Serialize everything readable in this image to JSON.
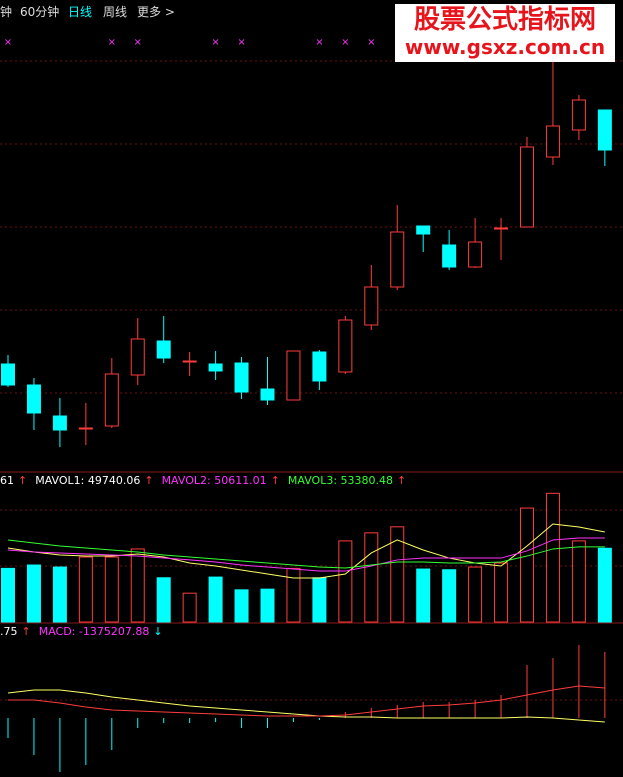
{
  "toolbar": [
    "钟",
    "60分钟",
    "日线",
    "周线",
    "更多 >"
  ],
  "watermark": {
    "title": "股票公式指标网",
    "url": "www.gsxz.com.cn"
  },
  "chart_data": [
    {
      "type": "candlestick",
      "open": [
        136,
        115,
        84,
        72,
        74,
        125,
        159,
        139,
        136,
        137,
        111,
        100,
        148,
        128,
        175,
        213,
        274,
        255,
        233,
        272,
        273,
        343,
        370,
        390
      ],
      "close": [
        115,
        87,
        70,
        72,
        126,
        161,
        142,
        139,
        129,
        108,
        100,
        149,
        119,
        180,
        213,
        268,
        266,
        233,
        258,
        272,
        353,
        374,
        400,
        350
      ],
      "high": [
        145,
        122,
        102,
        97,
        142,
        182,
        184,
        148,
        149,
        143,
        143,
        149,
        150,
        184,
        235,
        295,
        274,
        270,
        282,
        282,
        363,
        440,
        405,
        390
      ],
      "low": [
        113,
        70,
        53,
        55,
        72,
        115,
        137,
        124,
        120,
        101,
        95,
        100,
        110,
        126,
        170,
        210,
        248,
        230,
        232,
        240,
        273,
        335,
        360,
        334
      ],
      "up_color": "#ff3c3c",
      "down_color": "#00ffff",
      "ylim": [
        30,
        480
      ],
      "signals": {
        "symbol": "×",
        "color": "#ff33ff",
        "indices": [
          0,
          4,
          5,
          8,
          9,
          12,
          13,
          14
        ]
      }
    },
    {
      "type": "volume",
      "values": [
        40000,
        42500,
        41000,
        48500,
        48500,
        54500,
        33000,
        21500,
        33500,
        24000,
        24500,
        40000,
        33000,
        60500,
        66500,
        71000,
        39500,
        39000,
        41000,
        44000,
        85000,
        96000,
        60500,
        55000
      ],
      "ylim": [
        0,
        102200
      ],
      "legend": [
        {
          "text": "61",
          "arrow": "↑",
          "color": "#ffffff"
        },
        {
          "text": "MAVOL1: 49740.06",
          "arrow": "↑",
          "color": "#ffffff"
        },
        {
          "text": "MAVOL2: 50611.01",
          "arrow": "↑",
          "color": "#ff33ff"
        },
        {
          "text": "MAVOL3: 53380.48",
          "arrow": "↑",
          "color": "#33ff33"
        }
      ],
      "series": [
        {
          "color": "#ffff66",
          "values": [
            55200,
            52200,
            50000,
            49200,
            49200,
            50700,
            48500,
            44000,
            41800,
            38800,
            35800,
            32800,
            32800,
            35800,
            51500,
            61200,
            53700,
            47700,
            44000,
            41800,
            56700,
            73100,
            70900,
            67100
          ]
        },
        {
          "color": "#ff33ff",
          "values": [
            53700,
            52200,
            51500,
            50700,
            50000,
            49200,
            47700,
            46300,
            44800,
            42500,
            41000,
            39500,
            38000,
            38000,
            41800,
            46300,
            47700,
            47700,
            47700,
            47700,
            53000,
            61200,
            62700,
            62700
          ]
        },
        {
          "color": "#33ff33",
          "values": [
            61200,
            58900,
            56700,
            55200,
            53700,
            52200,
            50000,
            48500,
            47000,
            45500,
            44000,
            42500,
            41000,
            40300,
            42500,
            44800,
            44800,
            44000,
            44000,
            44800,
            49200,
            54500,
            56000,
            56000
          ]
        }
      ]
    },
    {
      "type": "macd",
      "values": [
        -500000,
        -925000,
        -1350000,
        -1175000,
        -800000,
        -250000,
        -125000,
        -125000,
        -100000,
        -250000,
        -250000,
        -100000,
        -50000,
        150000,
        250000,
        325000,
        400000,
        400000,
        450000,
        575000,
        1325000,
        1500000,
        1825000,
        1650000
      ],
      "ylim": [
        -1475000,
        2250000
      ],
      "legend": [
        {
          "text": ".75",
          "arrow": "↑",
          "color": "#ffffff",
          "arrow_color": "#ff3c3c"
        },
        {
          "text": "MACD: -1375207.88",
          "arrow": "↓",
          "color": "#ff33ff",
          "arrow_color": "#00ffff"
        }
      ],
      "series": [
        {
          "color": "#ffff66",
          "values": [
            625000,
            700000,
            700000,
            625000,
            525000,
            450000,
            375000,
            300000,
            250000,
            200000,
            150000,
            100000,
            50000,
            25000,
            25000,
            0,
            0,
            0,
            0,
            0,
            25000,
            0,
            -50000,
            -100000
          ]
        },
        {
          "color": "#ff3c3c",
          "values": [
            450000,
            450000,
            375000,
            275000,
            200000,
            175000,
            150000,
            125000,
            100000,
            75000,
            50000,
            50000,
            50000,
            75000,
            150000,
            225000,
            300000,
            325000,
            375000,
            450000,
            575000,
            700000,
            800000,
            750000
          ]
        }
      ]
    }
  ]
}
